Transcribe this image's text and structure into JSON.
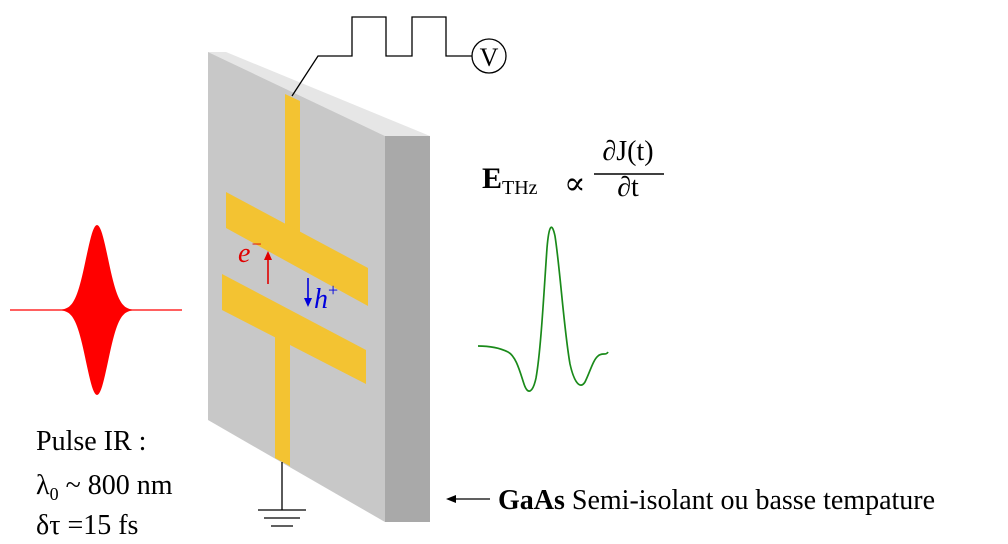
{
  "formula": {
    "lhs_symbol": "E",
    "lhs_subscript": "THz",
    "proportional": "∝",
    "numerator": "∂J(t)",
    "denominator": "∂t"
  },
  "voltmeter_label": "V",
  "carriers": {
    "electron": "e",
    "electron_sup": "−",
    "hole": "h",
    "hole_sup": "+"
  },
  "pulse_info": {
    "line1": "Pulse IR :",
    "line2_symbol": "λ",
    "line2_subscript": "0",
    "line2_rest": " ~ 800 nm",
    "line3": "δτ =15 fs"
  },
  "substrate_label": {
    "bold": "GaAs",
    "rest": " Semi-isolant ou basse tempature"
  },
  "colors": {
    "slab_face": "#c8c8c8",
    "slab_top": "#e6e6e6",
    "slab_side": "#a9a9a9",
    "electrode": "#f3c332",
    "electron": "#e00000",
    "hole": "#0000dd",
    "ir_pulse": "#ff0000",
    "thz_wave": "#1a8a1a"
  }
}
